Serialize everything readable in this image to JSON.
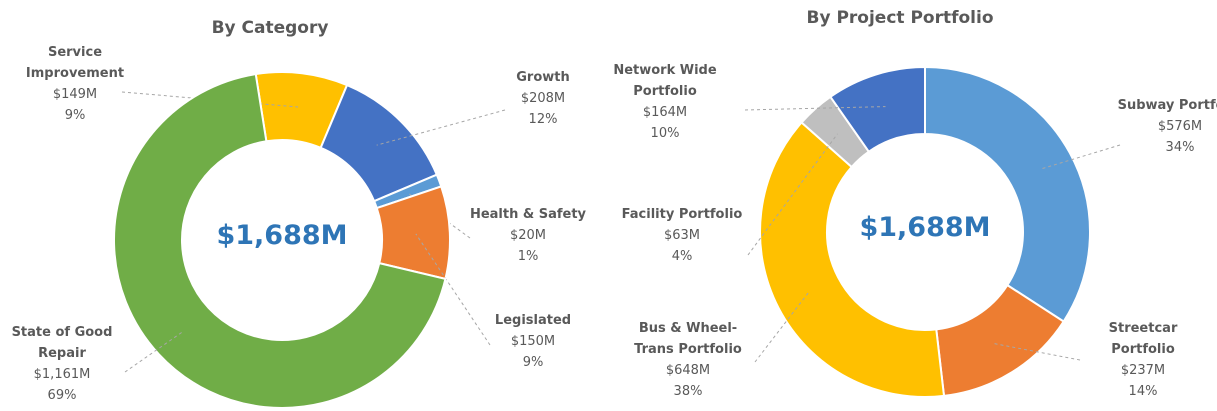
{
  "chart_data": [
    {
      "type": "donut",
      "title": "By Category",
      "total_label": "$1,688M",
      "categories": [
        "Service Improvement",
        "Growth",
        "Health & Safety",
        "Legislated",
        "State of Good Repair"
      ],
      "values": [
        149,
        208,
        20,
        150,
        1161
      ],
      "value_labels": [
        "$149M",
        "$208M",
        "$20M",
        "$150M",
        "$1,161M"
      ],
      "share_labels": [
        "9%",
        "12%",
        "1%",
        "9%",
        "69%"
      ],
      "colors": [
        "#ffc000",
        "#4472c4",
        "#5b9bd5",
        "#ed7d31",
        "#70ad47"
      ]
    },
    {
      "type": "donut",
      "title": "By Project Portfolio",
      "total_label": "$1,688M",
      "categories": [
        "Subway Portfolio",
        "Streetcar Portfolio",
        "Bus & Wheel-Trans Portfolio",
        "Facility Portfolio",
        "Network Wide Portfolio"
      ],
      "values": [
        576,
        237,
        648,
        63,
        164
      ],
      "value_labels": [
        "$576M",
        "$237M",
        "$648M",
        "$63M",
        "$164M"
      ],
      "share_labels": [
        "34%",
        "14%",
        "38%",
        "4%",
        "10%"
      ],
      "colors": [
        "#5b9bd5",
        "#ed7d31",
        "#ffc000",
        "#bfbfbf",
        "#4472c4"
      ]
    }
  ]
}
